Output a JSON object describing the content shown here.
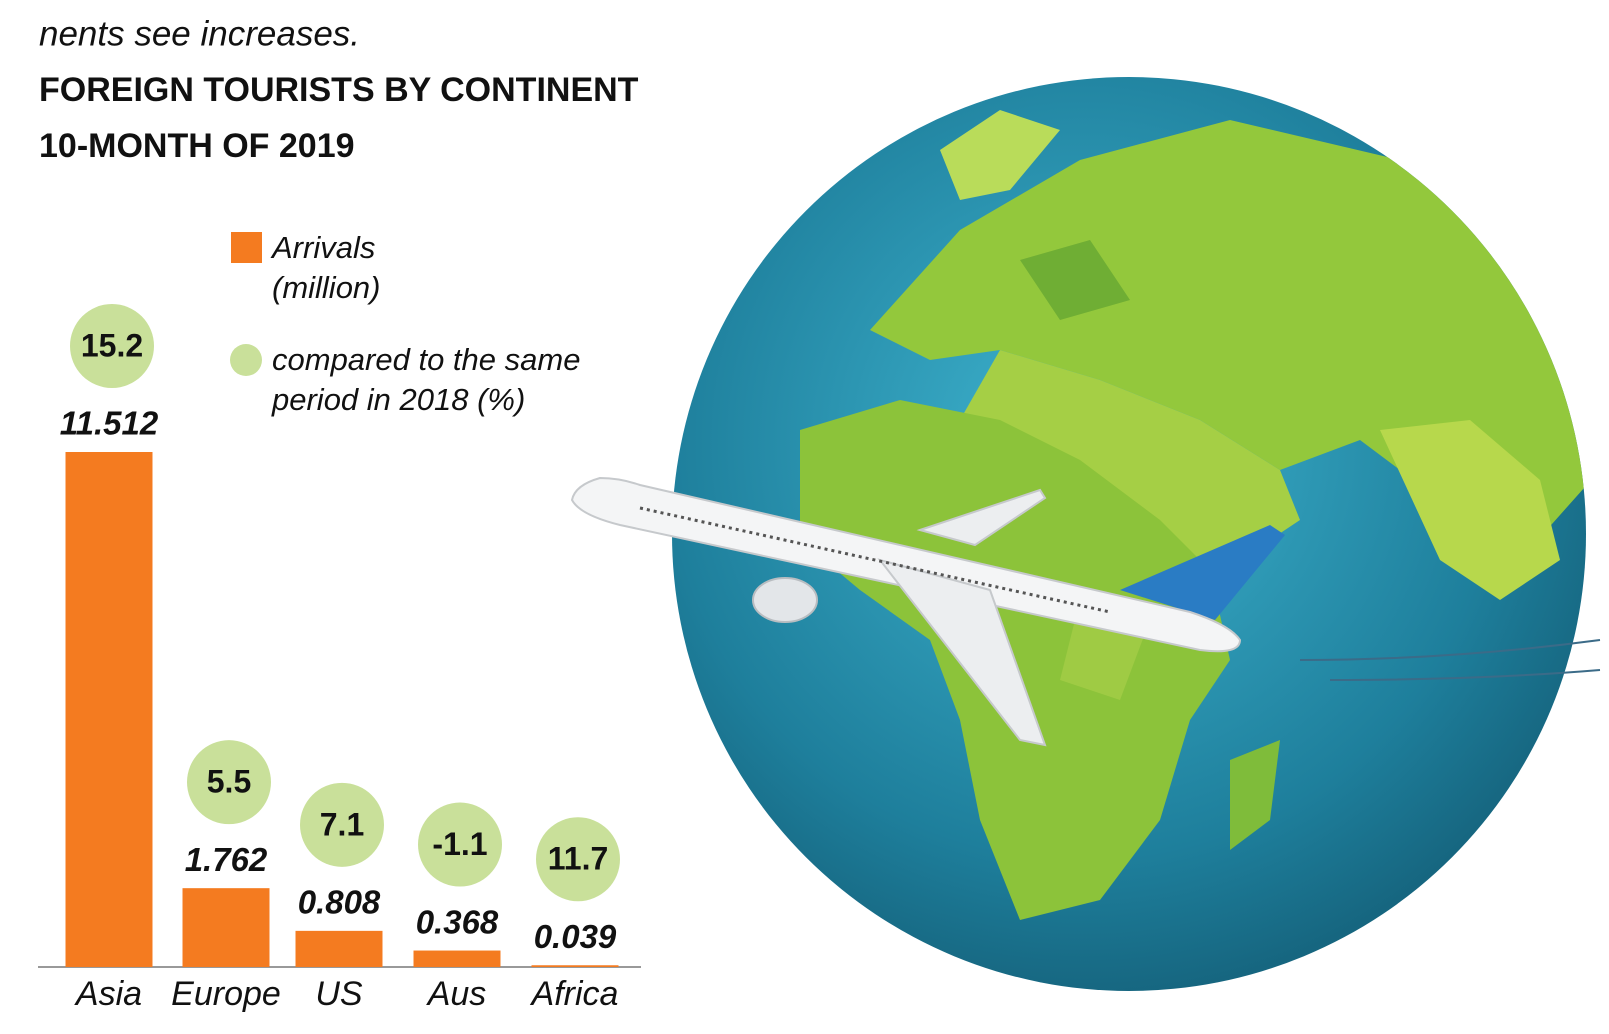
{
  "chart_data": {
    "type": "bar",
    "subtitle": "nents see increases.",
    "title": [
      "FOREIGN TOURISTS BY CONTINENT",
      "10-MONTH OF 2019"
    ],
    "categories": [
      "Asia",
      "Europe",
      "US",
      "Aus",
      "Africa"
    ],
    "series": [
      {
        "name": "Arrivals (million)",
        "color": "#f47b20",
        "values": [
          11.512,
          1.762,
          0.808,
          0.368,
          0.039
        ]
      },
      {
        "name": "compared to the same period in 2018 (%)",
        "color": "#c9e09a",
        "values": [
          15.2,
          5.5,
          7.1,
          -1.1,
          11.7
        ]
      }
    ]
  }
}
